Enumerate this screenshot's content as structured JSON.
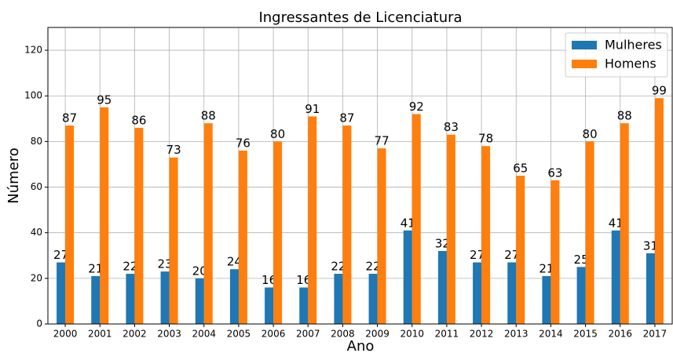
{
  "chart_data": {
    "type": "bar",
    "title": "Ingressantes de Licenciatura",
    "x_label": "Ano",
    "y_label": "Número",
    "categories": [
      "2000",
      "2001",
      "2002",
      "2003",
      "2004",
      "2005",
      "2006",
      "2007",
      "2008",
      "2009",
      "2010",
      "2011",
      "2012",
      "2013",
      "2014",
      "2015",
      "2016",
      "2017"
    ],
    "series": [
      {
        "name": "Mulheres",
        "color": "#1f77b4",
        "values": [
          27,
          21,
          22,
          23,
          20,
          24,
          16,
          16,
          22,
          22,
          41,
          32,
          27,
          27,
          21,
          25,
          41,
          31
        ]
      },
      {
        "name": "Homens",
        "color": "#ff7f0e",
        "values": [
          87,
          95,
          86,
          73,
          88,
          76,
          80,
          91,
          87,
          77,
          92,
          83,
          78,
          65,
          63,
          80,
          88,
          99
        ]
      }
    ],
    "ylim": [
      0,
      130
    ],
    "yticks": [
      0,
      20,
      40,
      60,
      80,
      100,
      120
    ],
    "grid": true,
    "legend": "upper right"
  }
}
